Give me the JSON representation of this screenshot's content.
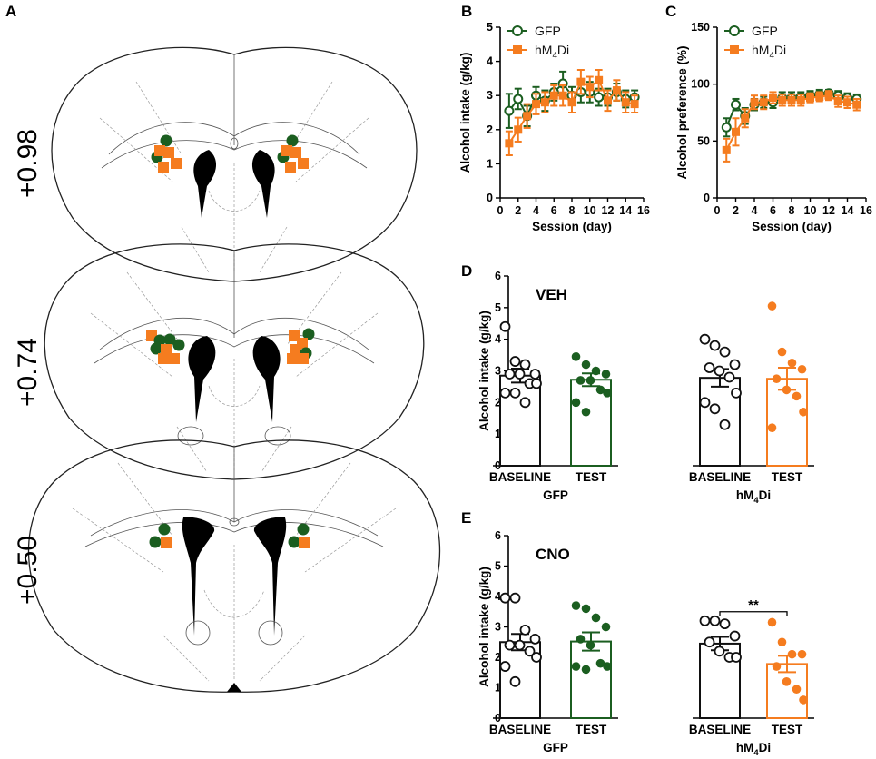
{
  "colors": {
    "gfp": "#1b5e20",
    "hm4di": "#f57c1f",
    "black": "#111111",
    "grid": "#999999"
  },
  "panel_labels": {
    "a": "A",
    "b": "B",
    "c": "C",
    "d": "D",
    "e": "E"
  },
  "brain_sections": [
    {
      "label": "+0.98",
      "gfp_markers": 4,
      "hm4di_markers": 8
    },
    {
      "label": "+0.74",
      "gfp_markers": 6,
      "hm4di_markers": 9
    },
    {
      "label": "+0.50",
      "gfp_markers": 4,
      "hm4di_markers": 2
    }
  ],
  "chart_data": [
    {
      "id": "B",
      "type": "line",
      "xlabel": "Session (day)",
      "ylabel": "Alcohol intake (g/kg)",
      "xlim": [
        0,
        16
      ],
      "ylim": [
        0,
        5
      ],
      "xticks": [
        0,
        2,
        4,
        6,
        8,
        10,
        12,
        14,
        16
      ],
      "yticks": [
        0,
        1,
        2,
        3,
        4,
        5
      ],
      "legend": "top-left",
      "series": [
        {
          "name": "GFP",
          "marker": "circle-open",
          "x": [
            1,
            2,
            3,
            4,
            5,
            6,
            7,
            8,
            9,
            10,
            11,
            12,
            13,
            14,
            15
          ],
          "y": [
            2.55,
            2.9,
            2.4,
            3.0,
            2.85,
            3.1,
            3.35,
            3.0,
            3.1,
            3.1,
            2.95,
            2.95,
            3.1,
            2.9,
            2.95
          ],
          "err": [
            0.5,
            0.3,
            0.3,
            0.25,
            0.3,
            0.25,
            0.35,
            0.25,
            0.3,
            0.3,
            0.25,
            0.25,
            0.25,
            0.25,
            0.2
          ]
        },
        {
          "name": "hM₄Di",
          "marker": "square",
          "x": [
            1,
            2,
            3,
            4,
            5,
            6,
            7,
            8,
            9,
            10,
            11,
            12,
            13,
            14,
            15
          ],
          "y": [
            1.6,
            2.0,
            2.4,
            2.75,
            2.8,
            3.0,
            3.0,
            2.8,
            3.4,
            3.25,
            3.45,
            2.85,
            3.15,
            2.8,
            2.75
          ],
          "err": [
            0.35,
            0.35,
            0.35,
            0.3,
            0.3,
            0.3,
            0.3,
            0.3,
            0.35,
            0.3,
            0.3,
            0.3,
            0.3,
            0.3,
            0.25
          ]
        }
      ]
    },
    {
      "id": "C",
      "type": "line",
      "xlabel": "Session (day)",
      "ylabel": "Alcohol preference (%)",
      "xlim": [
        0,
        16
      ],
      "ylim": [
        0,
        150
      ],
      "xticks": [
        0,
        2,
        4,
        6,
        8,
        10,
        12,
        14,
        16
      ],
      "yticks": [
        0,
        50,
        100,
        150
      ],
      "legend": "top-left",
      "series": [
        {
          "name": "GFP",
          "marker": "circle-open",
          "x": [
            1,
            2,
            3,
            4,
            5,
            6,
            7,
            8,
            9,
            10,
            11,
            12,
            13,
            14,
            15
          ],
          "y": [
            62,
            82,
            72,
            82,
            84,
            84,
            88,
            88,
            89,
            90,
            91,
            92,
            90,
            88,
            87
          ],
          "err": [
            8,
            5,
            7,
            5,
            5,
            5,
            5,
            5,
            4,
            4,
            4,
            3,
            4,
            4,
            4
          ]
        },
        {
          "name": "hM₄Di",
          "marker": "square",
          "x": [
            1,
            2,
            3,
            4,
            5,
            6,
            7,
            8,
            9,
            10,
            11,
            12,
            13,
            14,
            15
          ],
          "y": [
            42,
            58,
            70,
            84,
            84,
            88,
            86,
            86,
            86,
            88,
            89,
            90,
            85,
            84,
            82
          ],
          "err": [
            10,
            12,
            8,
            6,
            6,
            5,
            5,
            5,
            5,
            4,
            4,
            4,
            5,
            5,
            5
          ]
        }
      ]
    },
    {
      "id": "D",
      "type": "bar",
      "title": "VEH",
      "ylabel": "Alcohol intake (g/kg)",
      "ylim": [
        0,
        6
      ],
      "yticks": [
        0,
        1,
        2,
        3,
        4,
        5,
        6
      ],
      "groups": [
        {
          "name": "GFP",
          "bars": [
            {
              "category": "BASELINE",
              "mean": 2.85,
              "sem": 0.22,
              "style": "open-black",
              "points": [
                4.4,
                3.3,
                3.2,
                2.9,
                2.9,
                2.9,
                2.6,
                2.6,
                2.3,
                2.3,
                2.0
              ]
            },
            {
              "category": "TEST",
              "mean": 2.72,
              "sem": 0.2,
              "style": "open-gfp",
              "points": [
                3.45,
                3.2,
                3.0,
                2.9,
                2.7,
                2.7,
                2.4,
                2.3,
                2.0,
                1.7
              ]
            }
          ]
        },
        {
          "name": "hM₄Di",
          "bars": [
            {
              "category": "BASELINE",
              "mean": 2.78,
              "sem": 0.28,
              "style": "open-black",
              "points": [
                4.0,
                3.8,
                3.6,
                3.2,
                3.1,
                3.0,
                2.8,
                2.3,
                2.0,
                1.8,
                1.3
              ]
            },
            {
              "category": "TEST",
              "mean": 2.75,
              "sem": 0.35,
              "style": "open-hm4di",
              "points": [
                5.05,
                3.6,
                3.25,
                3.05,
                2.75,
                2.4,
                2.2,
                1.7,
                1.2
              ]
            }
          ]
        }
      ]
    },
    {
      "id": "E",
      "type": "bar",
      "title": "CNO",
      "ylabel": "Alcohol intake (g/kg)",
      "ylim": [
        0,
        6
      ],
      "yticks": [
        0,
        1,
        2,
        3,
        4,
        5,
        6
      ],
      "groups": [
        {
          "name": "GFP",
          "bars": [
            {
              "category": "BASELINE",
              "mean": 2.5,
              "sem": 0.27,
              "style": "open-black",
              "points": [
                3.95,
                3.95,
                2.9,
                2.6,
                2.4,
                2.4,
                2.2,
                2.0,
                1.7,
                1.2
              ]
            },
            {
              "category": "TEST",
              "mean": 2.52,
              "sem": 0.3,
              "style": "open-gfp",
              "points": [
                3.7,
                3.6,
                3.3,
                3.0,
                2.6,
                2.4,
                1.8,
                1.7,
                1.7,
                1.6
              ]
            }
          ]
        },
        {
          "name": "hM₄Di",
          "bars": [
            {
              "category": "BASELINE",
              "mean": 2.45,
              "sem": 0.22,
              "style": "open-black",
              "points": [
                3.2,
                3.2,
                3.1,
                2.7,
                2.5,
                2.2,
                2.0,
                2.0
              ]
            },
            {
              "category": "TEST",
              "mean": 1.78,
              "sem": 0.27,
              "style": "open-hm4di",
              "points": [
                3.15,
                2.5,
                2.1,
                2.1,
                1.7,
                1.2,
                0.95,
                0.6
              ]
            }
          ]
        }
      ],
      "annotation": {
        "text": "**",
        "between": [
          "BASELINE",
          "TEST"
        ],
        "group": "hM₄Di"
      }
    }
  ]
}
